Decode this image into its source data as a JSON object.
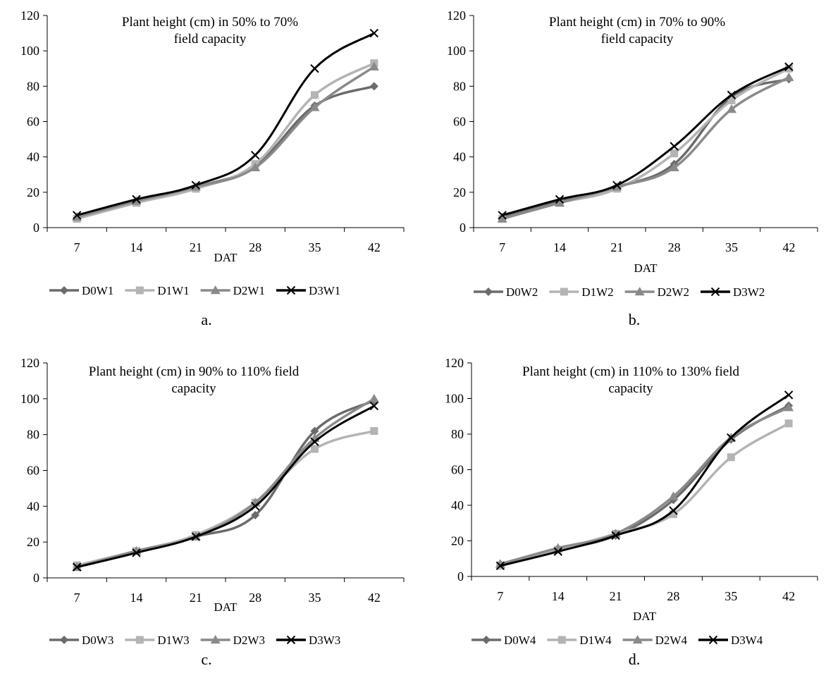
{
  "panels": [
    {
      "id": "a",
      "caption": "a.",
      "chart_data": {
        "type": "line",
        "title_lines": [
          "Plant height (cm) in 50% to 70%",
          "field capacity"
        ],
        "xlabel": "DAT",
        "ylabel": "",
        "categories": [
          "7",
          "14",
          "21",
          "28",
          "35",
          "42"
        ],
        "ylim": [
          0,
          120
        ],
        "yticks": [
          0,
          20,
          40,
          60,
          80,
          100,
          120
        ],
        "grid": false,
        "legend_position": "bottom",
        "series": [
          {
            "name": "D0W1",
            "color": "#6b6b6b",
            "marker": "diamond",
            "values": [
              6,
              15,
              23,
              35,
              69,
              80
            ]
          },
          {
            "name": "D1W1",
            "color": "#b4b4b4",
            "marker": "square",
            "values": [
              5,
              14,
              22,
              36,
              75,
              93
            ]
          },
          {
            "name": "D2W1",
            "color": "#8a8a8a",
            "marker": "triangle",
            "values": [
              6,
              15,
              23,
              34,
              68,
              91
            ]
          },
          {
            "name": "D3W1",
            "color": "#000000",
            "marker": "x",
            "values": [
              7,
              16,
              24,
              41,
              90,
              110
            ]
          }
        ]
      }
    },
    {
      "id": "b",
      "caption": "b.",
      "chart_data": {
        "type": "line",
        "title_lines": [
          "Plant height (cm) in 70% to 90%",
          "field capacity"
        ],
        "xlabel": "DAT",
        "ylabel": "",
        "categories": [
          "7",
          "14",
          "21",
          "28",
          "35",
          "42"
        ],
        "ylim": [
          0,
          120
        ],
        "yticks": [
          0,
          20,
          40,
          60,
          80,
          100,
          120
        ],
        "grid": false,
        "legend_position": "bottom",
        "series": [
          {
            "name": "D0W2",
            "color": "#6b6b6b",
            "marker": "diamond",
            "values": [
              6,
              15,
              23,
              36,
              74,
              84
            ]
          },
          {
            "name": "D1W2",
            "color": "#b4b4b4",
            "marker": "square",
            "values": [
              5,
              14,
              22,
              42,
              72,
              90
            ]
          },
          {
            "name": "D2W2",
            "color": "#8a8a8a",
            "marker": "triangle",
            "values": [
              5,
              14,
              23,
              34,
              67,
              85
            ]
          },
          {
            "name": "D3W2",
            "color": "#000000",
            "marker": "x",
            "values": [
              7,
              16,
              24,
              46,
              75,
              91
            ]
          }
        ]
      }
    },
    {
      "id": "c",
      "caption": "c.",
      "chart_data": {
        "type": "line",
        "title_lines": [
          "Plant height (cm) in 90% to 110% field",
          "capacity"
        ],
        "xlabel": "DAT",
        "ylabel": "",
        "categories": [
          "7",
          "14",
          "21",
          "28",
          "35",
          "42"
        ],
        "ylim": [
          0,
          120
        ],
        "yticks": [
          0,
          20,
          40,
          60,
          80,
          100,
          120
        ],
        "grid": false,
        "legend_position": "bottom",
        "series": [
          {
            "name": "D0W3",
            "color": "#6b6b6b",
            "marker": "diamond",
            "values": [
              6,
              15,
              23,
              35,
              82,
              99
            ]
          },
          {
            "name": "D1W3",
            "color": "#b4b4b4",
            "marker": "square",
            "values": [
              7,
              15,
              24,
              42,
              72,
              82
            ]
          },
          {
            "name": "D2W3",
            "color": "#8a8a8a",
            "marker": "triangle",
            "values": [
              6,
              15,
              23,
              42,
              78,
              100
            ]
          },
          {
            "name": "D3W3",
            "color": "#000000",
            "marker": "x",
            "values": [
              6,
              14,
              23,
              40,
              76,
              96
            ]
          }
        ]
      }
    },
    {
      "id": "d",
      "caption": "d.",
      "chart_data": {
        "type": "line",
        "title_lines": [
          "Plant height (cm) in 110% to 130% field",
          "capacity"
        ],
        "xlabel": "DAT",
        "ylabel": "",
        "categories": [
          "7",
          "14",
          "21",
          "28",
          "35",
          "42"
        ],
        "ylim": [
          0,
          120
        ],
        "yticks": [
          0,
          20,
          40,
          60,
          80,
          100,
          120
        ],
        "grid": false,
        "legend_position": "bottom",
        "series": [
          {
            "name": "D0W4",
            "color": "#6b6b6b",
            "marker": "diamond",
            "values": [
              7,
              15,
              23,
              43,
              77,
              96
            ]
          },
          {
            "name": "D1W4",
            "color": "#b4b4b4",
            "marker": "square",
            "values": [
              6,
              15,
              24,
              35,
              67,
              86
            ]
          },
          {
            "name": "D2W4",
            "color": "#8a8a8a",
            "marker": "triangle",
            "values": [
              7,
              16,
              24,
              45,
              78,
              95
            ]
          },
          {
            "name": "D3W4",
            "color": "#000000",
            "marker": "x",
            "values": [
              6,
              14,
              23,
              37,
              78,
              102
            ]
          }
        ]
      }
    }
  ]
}
